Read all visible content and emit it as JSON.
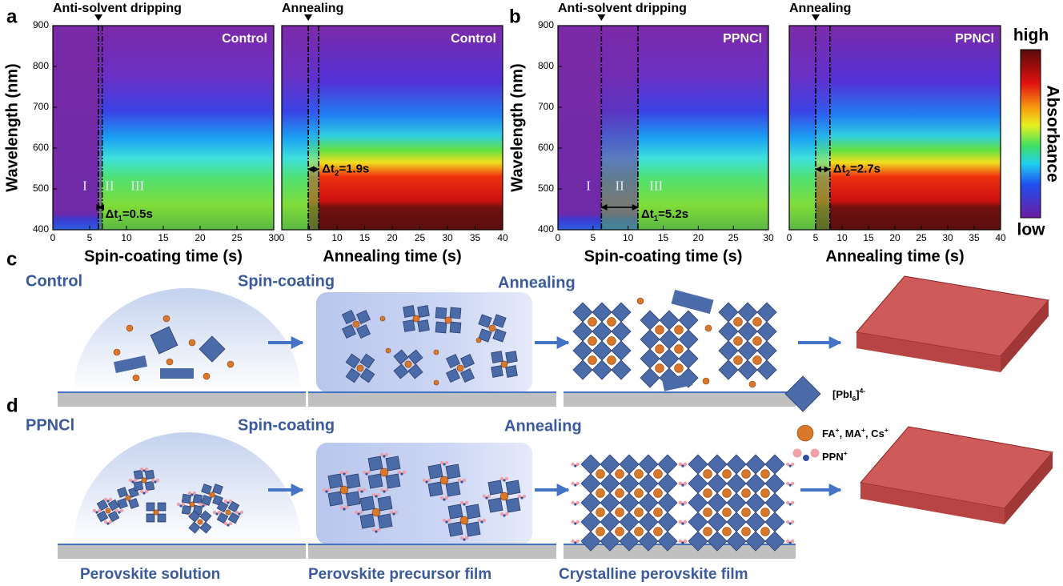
{
  "panel_labels": [
    "a",
    "b",
    "c",
    "d"
  ],
  "chart_data": [
    {
      "type": "heatmap",
      "xlabel": "Spin-coating time (s)",
      "ylabel": "Wavelength (nm)",
      "xlim": [
        0,
        30
      ],
      "xticks": [
        0,
        5,
        10,
        15,
        20,
        25,
        30
      ],
      "ylim": [
        400,
        900
      ],
      "yticks": [
        400,
        500,
        600,
        700,
        800,
        900
      ],
      "tag": "Control",
      "event": "Anti-solvent dripping",
      "lines": [
        6.2,
        6.7
      ],
      "regions": [
        "I",
        "II",
        "III"
      ],
      "interval": [
        "Δt",
        "1",
        "=0.5s"
      ]
    },
    {
      "type": "heatmap",
      "xlabel": "Annealing time (s)",
      "xlim": [
        0,
        40
      ],
      "xticks": [
        0,
        5,
        10,
        15,
        20,
        25,
        30,
        35,
        40
      ],
      "ylim": [
        400,
        900
      ],
      "tag": "Control",
      "event": "Annealing",
      "lines": [
        4.8,
        6.7
      ],
      "interval": [
        "Δt",
        "2",
        "=1.9s"
      ]
    },
    {
      "type": "heatmap",
      "xlabel": "Spin-coating time (s)",
      "ylabel": "Wavelength (nm)",
      "xlim": [
        0,
        30
      ],
      "xticks": [
        0,
        5,
        10,
        15,
        20,
        25,
        30
      ],
      "ylim": [
        400,
        900
      ],
      "yticks": [
        400,
        500,
        600,
        700,
        800,
        900
      ],
      "tag": "PPNCl",
      "event": "Anti-solvent dripping",
      "lines": [
        6.2,
        11.4
      ],
      "regions": [
        "I",
        "II",
        "III"
      ],
      "interval": [
        "Δt",
        "1",
        "=5.2s"
      ]
    },
    {
      "type": "heatmap",
      "xlabel": "Annealing time (s)",
      "xlim": [
        0,
        40
      ],
      "xticks": [
        0,
        5,
        10,
        15,
        20,
        25,
        30,
        35,
        40
      ],
      "ylim": [
        400,
        900
      ],
      "tag": "PPNCl",
      "event": "Annealing",
      "lines": [
        5.0,
        7.7
      ],
      "interval": [
        "Δt",
        "2",
        "=2.7s"
      ]
    }
  ],
  "colorbar": {
    "high": "high",
    "low": "low",
    "title": "Absorbance"
  },
  "schematic": {
    "rows": [
      {
        "sample": "Control",
        "step1": "Spin-coating",
        "step2": "Annealing"
      },
      {
        "sample": "PPNCl",
        "step1": "Spin-coating",
        "step2": "Annealing"
      }
    ],
    "stages": [
      "Perovskite solution",
      "Perovskite precursor film",
      "Crystalline perovskite film"
    ],
    "legend": [
      [
        "[PbI",
        "6",
        "]",
        "4-"
      ],
      [
        "FA",
        "+",
        ", MA",
        "+",
        ", Cs",
        "+"
      ],
      [
        "PPN",
        "+"
      ]
    ]
  }
}
